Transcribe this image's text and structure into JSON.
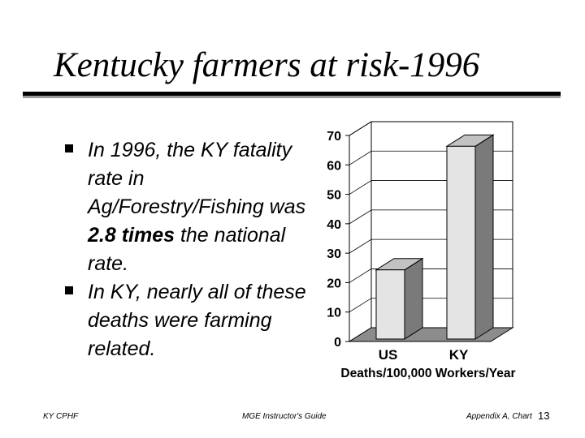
{
  "title": "Kentucky farmers at risk-1996",
  "bullets": [
    {
      "pre": "In 1996, the KY fatality rate in Ag/Forestry/Fishing was ",
      "bold": "2.8 times",
      "post": " the national rate."
    },
    {
      "pre": "In KY, nearly all of these deaths were farming related.",
      "bold": "",
      "post": ""
    }
  ],
  "chart_data": {
    "type": "bar",
    "categories": [
      "US",
      "KY"
    ],
    "values": [
      23.5,
      65.5
    ],
    "xlabel": "Deaths/100,000 Workers/Year",
    "ylabel": "",
    "ylim": [
      0,
      70
    ],
    "yticks": [
      0,
      10,
      20,
      30,
      40,
      50,
      60,
      70
    ],
    "grid": true,
    "style": "3d",
    "colors": {
      "bar_front": "#e4e4e4",
      "bar_side": "#7a7a7a",
      "bar_top": "#c2c2c2",
      "wall": "#ffffff",
      "floor": "#8c8c8c"
    }
  },
  "footer": {
    "left": "KY CPHF",
    "center": "MGE Instructor's Guide",
    "right": "Appendix A, Chart",
    "page": "13"
  }
}
